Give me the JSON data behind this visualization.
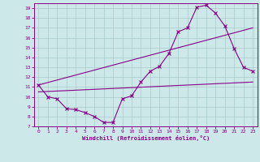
{
  "xlabel": "Windchill (Refroidissement éolien,°C)",
  "xlim": [
    -0.5,
    23.5
  ],
  "ylim": [
    7,
    19.5
  ],
  "xticks": [
    0,
    1,
    2,
    3,
    4,
    5,
    6,
    7,
    8,
    9,
    10,
    11,
    12,
    13,
    14,
    15,
    16,
    17,
    18,
    19,
    20,
    21,
    22,
    23
  ],
  "yticks": [
    7,
    8,
    9,
    10,
    11,
    12,
    13,
    14,
    15,
    16,
    17,
    18,
    19
  ],
  "bg_color": "#cce8e8",
  "line_color": "#880088",
  "grid_color": "#aacccc",
  "curve1_x": [
    0,
    1,
    2,
    3,
    4,
    5,
    6,
    7,
    8,
    9,
    10,
    11,
    12,
    13,
    14,
    15,
    16,
    17,
    18,
    19,
    20,
    21,
    22,
    23
  ],
  "curve1_y": [
    11.2,
    10.0,
    9.8,
    8.8,
    8.7,
    8.4,
    8.0,
    7.4,
    7.4,
    9.8,
    10.1,
    11.5,
    12.6,
    13.1,
    14.4,
    16.6,
    17.0,
    19.1,
    19.3,
    18.5,
    17.2,
    14.9,
    13.0,
    12.6
  ],
  "curve2_x": [
    0,
    23
  ],
  "curve2_y": [
    10.5,
    11.5
  ],
  "curve3_x": [
    0,
    23
  ],
  "curve3_y": [
    11.2,
    17.0
  ]
}
